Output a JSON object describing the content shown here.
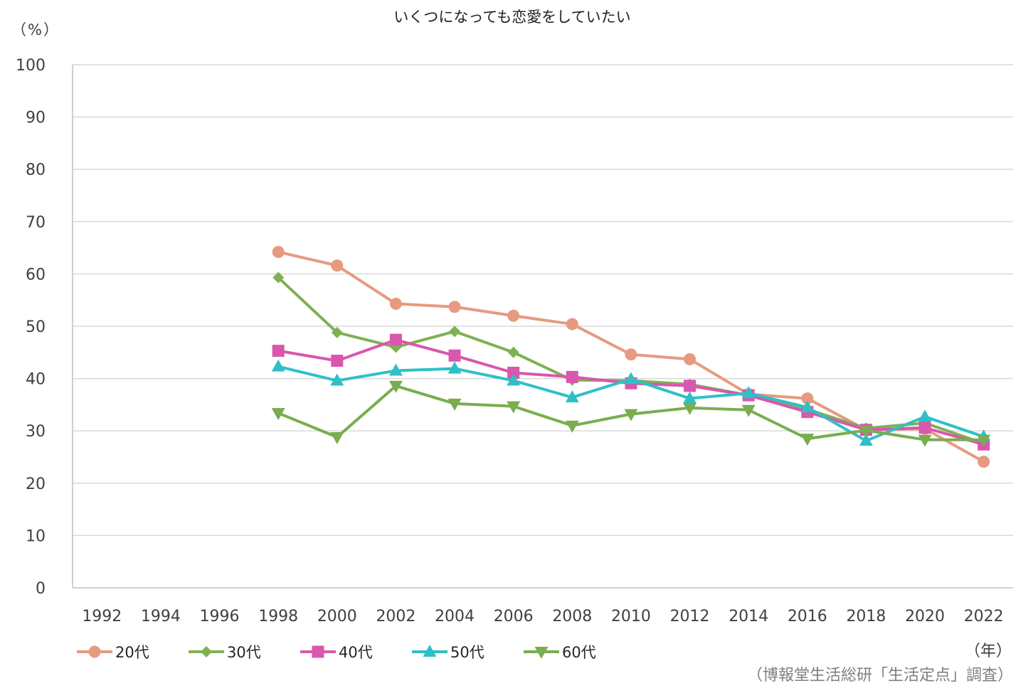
{
  "chart_data": {
    "type": "line",
    "title": "いくつになっても恋愛をしていたい",
    "y_unit_label": "（%）",
    "x_unit_label": "（年）",
    "source": "（博報堂生活総研「生活定点」調査）",
    "ylim": [
      0,
      100
    ],
    "yticks": [
      0,
      10,
      20,
      30,
      40,
      50,
      60,
      70,
      80,
      90,
      100
    ],
    "x": [
      "1992",
      "1994",
      "1996",
      "1998",
      "2000",
      "2002",
      "2004",
      "2006",
      "2008",
      "2010",
      "2012",
      "2014",
      "2016",
      "2018",
      "2020",
      "2022"
    ],
    "grid": true,
    "legend_position": "bottom-left",
    "series": [
      {
        "name": "20代",
        "color": "#e79a80",
        "marker": "circle",
        "values": [
          null,
          null,
          null,
          64.2,
          61.6,
          54.3,
          53.7,
          52.0,
          50.4,
          44.6,
          43.7,
          37.0,
          36.2,
          30.2,
          30.4,
          24.1
        ]
      },
      {
        "name": "30代",
        "color": "#7fb054",
        "marker": "diamond",
        "values": [
          null,
          null,
          null,
          59.3,
          48.8,
          46.0,
          49.0,
          45.0,
          39.7,
          39.6,
          38.9,
          36.8,
          34.1,
          30.5,
          31.5,
          27.6
        ]
      },
      {
        "name": "40代",
        "color": "#d957ad",
        "marker": "square",
        "values": [
          null,
          null,
          null,
          45.3,
          43.4,
          47.4,
          44.4,
          41.1,
          40.3,
          39.1,
          38.6,
          36.8,
          33.6,
          30.2,
          30.6,
          27.4
        ]
      },
      {
        "name": "50代",
        "color": "#2fc0c6",
        "marker": "triangle-up",
        "values": [
          null,
          null,
          null,
          42.3,
          39.6,
          41.5,
          41.9,
          39.6,
          36.4,
          39.9,
          36.2,
          37.2,
          34.5,
          28.1,
          32.7,
          28.9
        ]
      },
      {
        "name": "60代",
        "color": "#79ad4f",
        "marker": "triangle-down",
        "values": [
          null,
          null,
          null,
          33.4,
          28.8,
          38.6,
          35.2,
          34.7,
          31.0,
          33.2,
          34.4,
          34.0,
          28.5,
          30.1,
          28.3,
          28.3
        ]
      }
    ]
  }
}
